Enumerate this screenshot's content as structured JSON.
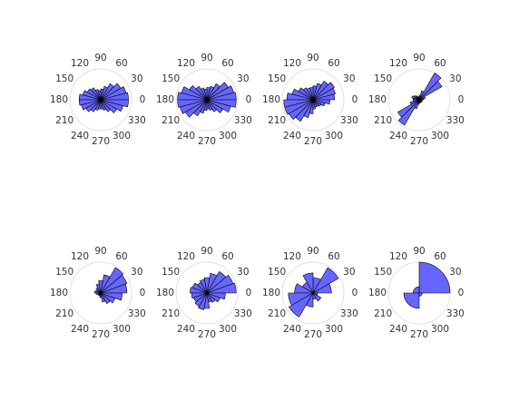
{
  "chart_data": [
    {
      "type": "rose",
      "color": "#6666ff",
      "rlim": [
        0,
        1
      ],
      "thetaticks": [
        0,
        30,
        60,
        90,
        120,
        150,
        180,
        210,
        240,
        270,
        300,
        330
      ],
      "values": [
        0.9,
        0.85,
        0.75,
        0.6,
        0.45,
        0.35,
        0.3,
        0.35,
        0.45,
        0.5,
        0.6,
        0.7,
        0.7,
        0.65,
        0.55,
        0.45,
        0.35,
        0.3,
        0.3,
        0.35,
        0.45,
        0.6,
        0.75,
        0.9
      ]
    },
    {
      "type": "rose",
      "color": "#6666ff",
      "rlim": [
        0,
        1
      ],
      "thetaticks": [
        0,
        30,
        60,
        90,
        120,
        150,
        180,
        210,
        240,
        270,
        300,
        330
      ],
      "values": [
        0.95,
        0.9,
        0.8,
        0.6,
        0.45,
        0.4,
        0.35,
        0.4,
        0.5,
        0.65,
        0.85,
        0.95,
        0.95,
        0.9,
        0.8,
        0.6,
        0.45,
        0.35,
        0.3,
        0.35,
        0.45,
        0.6,
        0.8,
        0.95
      ]
    },
    {
      "type": "rose",
      "color": "#6666ff",
      "rlim": [
        0,
        1
      ],
      "thetaticks": [
        0,
        30,
        60,
        90,
        120,
        150,
        180,
        210,
        240,
        270,
        300,
        330
      ],
      "values": [
        0.7,
        0.75,
        0.8,
        0.7,
        0.55,
        0.45,
        0.4,
        0.4,
        0.45,
        0.55,
        0.7,
        0.85,
        0.95,
        0.95,
        0.9,
        0.8,
        0.6,
        0.45,
        0.3,
        0.25,
        0.25,
        0.3,
        0.4,
        0.55
      ]
    },
    {
      "type": "rose",
      "color": "#6666ff",
      "rlim": [
        0,
        1
      ],
      "thetaticks": [
        0,
        30,
        60,
        90,
        120,
        150,
        180,
        210,
        240,
        270,
        300,
        330
      ],
      "values": [
        0.15,
        0.2,
        0.85,
        1.0,
        0.3,
        0.15,
        0.1,
        0.1,
        0.15,
        0.2,
        0.25,
        0.2,
        0.2,
        0.3,
        0.8,
        0.95,
        0.3,
        0.15,
        0.1,
        0.1,
        0.1,
        0.1,
        0.1,
        0.1
      ]
    },
    {
      "type": "rose",
      "color": "#6666ff",
      "rlim": [
        0,
        1
      ],
      "thetaticks": [
        0,
        30,
        60,
        90,
        120,
        150,
        180,
        210,
        240,
        270,
        300,
        330
      ],
      "values": [
        0.85,
        0.9,
        0.95,
        0.6,
        0.4,
        0.3,
        0.2,
        0.15,
        0.2,
        0.15,
        0.1,
        0.1,
        0.1,
        0.15,
        0.3,
        0.4,
        0.5,
        0.7
      ]
    },
    {
      "type": "rose",
      "color": "#6666ff",
      "rlim": [
        0,
        1
      ],
      "thetaticks": [
        0,
        30,
        60,
        90,
        120,
        150,
        180,
        210,
        240,
        270,
        300,
        330
      ],
      "values": [
        0.95,
        0.9,
        0.8,
        0.65,
        0.5,
        0.45,
        0.4,
        0.5,
        0.55,
        0.5,
        0.45,
        0.5,
        0.55,
        0.5,
        0.3,
        0.35,
        0.45,
        0.6
      ]
    },
    {
      "type": "rose",
      "color": "#6666ff",
      "rlim": [
        0,
        1
      ],
      "thetaticks": [
        0,
        30,
        60,
        90,
        120,
        150,
        180,
        210,
        240,
        270,
        300,
        330
      ],
      "values": [
        0.6,
        0.95,
        0.5,
        0.65,
        0.4,
        0.6,
        0.8,
        0.9,
        0.45,
        0.2,
        0.3,
        0.15
      ]
    },
    {
      "type": "rose",
      "color": "#6666ff",
      "rlim": [
        0,
        1
      ],
      "thetaticks": [
        0,
        30,
        60,
        90,
        120,
        150,
        180,
        210,
        240,
        270,
        300,
        330
      ],
      "values": [
        1.0,
        0.2,
        0.5,
        0.1
      ]
    }
  ]
}
